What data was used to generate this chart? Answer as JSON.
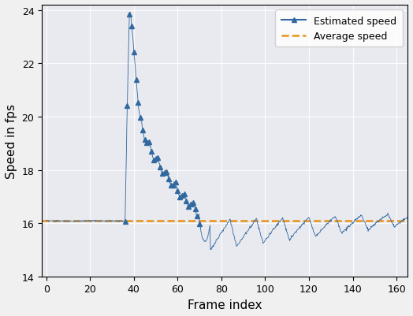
{
  "title": "",
  "xlabel": "Frame index",
  "ylabel": "Speed in fps",
  "xlim": [
    -2,
    165
  ],
  "ylim": [
    14,
    24.2
  ],
  "xticks": [
    0,
    20,
    40,
    60,
    80,
    100,
    120,
    140,
    160
  ],
  "yticks": [
    14,
    16,
    18,
    20,
    22,
    24
  ],
  "average_speed": 16.08,
  "line_color": "#31689e",
  "avg_color": "#e8921a",
  "background_color": "#e8eaf0",
  "legend_estimated": "Estimated speed",
  "legend_average": "Average speed",
  "fig_bg": "#f0f0f0"
}
